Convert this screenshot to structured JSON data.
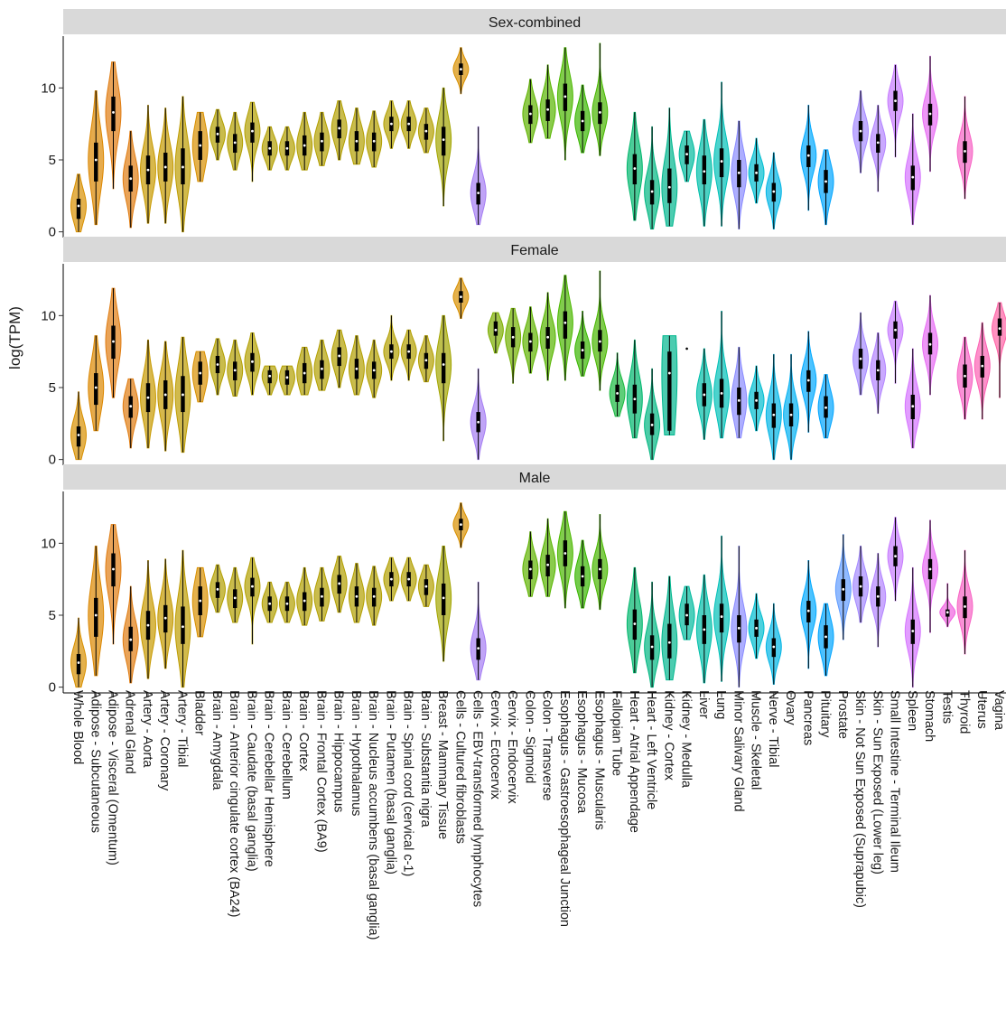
{
  "chart_data": {
    "type": "violin",
    "ylabel": "log(TPM)",
    "xlabel": "",
    "ylim": [
      -0.4,
      13.6
    ],
    "yticks": [
      0,
      5,
      10
    ],
    "grid": false,
    "legend": "none",
    "panels": [
      "Sex-combined",
      "Female",
      "Male"
    ],
    "categories": [
      "Whole Blood",
      "Adipose - Subcutaneous",
      "Adipose - Visceral (Omentum)",
      "Adrenal Gland",
      "Artery - Aorta",
      "Artery - Coronary",
      "Artery - Tibial",
      "Bladder",
      "Brain - Amygdala",
      "Brain - Anterior cingulate cortex (BA24)",
      "Brain - Caudate (basal ganglia)",
      "Brain - Cerebellar Hemisphere",
      "Brain - Cerebellum",
      "Brain - Cortex",
      "Brain - Frontal Cortex (BA9)",
      "Brain - Hippocampus",
      "Brain - Hypothalamus",
      "Brain - Nucleus accumbens (basal ganglia)",
      "Brain - Putamen (basal ganglia)",
      "Brain - Spinal cord (cervical c-1)",
      "Brain - Substantia nigra",
      "Breast - Mammary Tissue",
      "Cells - Cultured fibroblasts",
      "Cells - EBV-transformed lymphocytes",
      "Cervix - Ectocervix",
      "Cervix - Endocervix",
      "Colon - Sigmoid",
      "Colon - Transverse",
      "Esophagus - Gastroesophageal Junction",
      "Esophagus - Mucosa",
      "Esophagus - Muscularis",
      "Fallopian Tube",
      "Heart - Atrial Appendage",
      "Heart - Left Ventricle",
      "Kidney - Cortex",
      "Kidney - Medulla",
      "Liver",
      "Lung",
      "Minor Salivary Gland",
      "Muscle - Skeletal",
      "Nerve - Tibial",
      "Ovary",
      "Pancreas",
      "Pituitary",
      "Prostate",
      "Skin - Not Sun Exposed (Suprapubic)",
      "Skin - Sun Exposed (Lower leg)",
      "Small Intestine - Terminal Ileum",
      "Spleen",
      "Stomach",
      "Testis",
      "Thyroid",
      "Uterus",
      "Vagina"
    ],
    "colors": [
      "#D89000",
      "#DC8700",
      "#E07C11",
      "#E07C11",
      "#C89A00",
      "#C49A00",
      "#BE9C00",
      "#D89000",
      "#B29F00",
      "#B29F00",
      "#B29F00",
      "#B29F00",
      "#B29F00",
      "#B29F00",
      "#B29F00",
      "#B29F00",
      "#B29F00",
      "#B29F00",
      "#B29F00",
      "#B29F00",
      "#B29F00",
      "#A3A500",
      "#D89000",
      "#A57EF3",
      "#7CAE00",
      "#72B000",
      "#5FB300",
      "#58B500",
      "#4CB800",
      "#39B600",
      "#49B700",
      "#1AB940",
      "#00B76D",
      "#00B681",
      "#00B78F",
      "#00BA9E",
      "#00BFAA",
      "#00C0B8",
      "#8A8BFF",
      "#00BDD0",
      "#00B5E5",
      "#00B0F2",
      "#00A9FF",
      "#00A5FF",
      "#619CFF",
      "#A58AFF",
      "#B385FF",
      "#C77CFF",
      "#D573FF",
      "#E76BF3",
      "#F062DF",
      "#F763C4",
      "#FC61B3",
      "#FF62A5"
    ],
    "series": [
      {
        "name": "Sex-combined",
        "values": [
          [
            0,
            4,
            1.8,
            0.9,
            2.3
          ],
          [
            0.5,
            9.8,
            5,
            3.5,
            6.2
          ],
          [
            3,
            11.8,
            8.3,
            7,
            9.4
          ],
          [
            0.3,
            7,
            3.7,
            2.8,
            4.6
          ],
          [
            0.6,
            8.8,
            4.3,
            3.3,
            5.3
          ],
          [
            0.6,
            8.6,
            4.5,
            3.5,
            5.5
          ],
          [
            0,
            9.4,
            4.5,
            3.3,
            5.8
          ],
          [
            3.5,
            8.3,
            6,
            5,
            7
          ],
          [
            5,
            8.5,
            6.8,
            6.2,
            7.3
          ],
          [
            4.3,
            8.3,
            6.2,
            5.5,
            6.8
          ],
          [
            3.5,
            9,
            7,
            6.2,
            7.6
          ],
          [
            4.3,
            7.3,
            5.8,
            5.3,
            6.3
          ],
          [
            4.3,
            7.3,
            5.8,
            5.3,
            6.3
          ],
          [
            4.3,
            8.3,
            6,
            5.3,
            6.7
          ],
          [
            4.6,
            8.3,
            6.3,
            5.6,
            6.9
          ],
          [
            5,
            9.1,
            7.2,
            6.5,
            7.8
          ],
          [
            4.7,
            8.6,
            6.3,
            5.6,
            7
          ],
          [
            4.5,
            8.4,
            6.3,
            5.6,
            6.9
          ],
          [
            5.8,
            9.1,
            7.5,
            7,
            8
          ],
          [
            5.8,
            9.1,
            7.5,
            7,
            8
          ],
          [
            5.5,
            8.6,
            7,
            6.4,
            7.5
          ],
          [
            1.8,
            10,
            6.4,
            5.3,
            7.3
          ],
          [
            9.6,
            12.8,
            11.3,
            10.9,
            11.7
          ],
          [
            0.5,
            7.3,
            2.7,
            1.9,
            3.4
          ],
          [],
          [],
          [
            6.2,
            10.6,
            8.2,
            7.5,
            8.8
          ],
          [
            6.5,
            11.6,
            8.5,
            7.7,
            9.2
          ],
          [
            5,
            12.8,
            9.4,
            8.4,
            10.3
          ],
          [
            5.5,
            10.2,
            7.7,
            7,
            8.4
          ],
          [
            5.3,
            13.1,
            8.3,
            7.5,
            9
          ],
          [],
          [
            0.8,
            8.3,
            4.4,
            3.3,
            5.4
          ],
          [
            0.2,
            7.3,
            2.8,
            1.9,
            3.6
          ],
          [
            0.4,
            8.6,
            3.1,
            2,
            4.4
          ],
          [
            3.5,
            7,
            5.4,
            4.7,
            6
          ],
          [
            0.4,
            7.8,
            4.2,
            3.3,
            5.3
          ],
          [
            0.4,
            10.4,
            4.9,
            3.8,
            5.8
          ],
          [
            0.2,
            7.7,
            4.1,
            3.1,
            5
          ],
          [
            2,
            6.5,
            4.1,
            3.5,
            4.7
          ],
          [
            0.2,
            5.5,
            2.8,
            2.1,
            3.4
          ],
          [],
          [
            1.5,
            8.8,
            5.3,
            4.5,
            6
          ],
          [
            0.5,
            5.7,
            3.5,
            2.7,
            4.3
          ],
          [],
          [
            4.1,
            9.8,
            7,
            6.3,
            7.7
          ],
          [
            2.8,
            8.8,
            6.2,
            5.5,
            6.8
          ],
          [
            5.2,
            11.6,
            9.1,
            8.4,
            9.8
          ],
          [
            0.5,
            8.2,
            3.8,
            2.9,
            4.6
          ],
          [
            4.2,
            12.2,
            8.2,
            7.4,
            8.9
          ],
          [],
          [
            2.3,
            9.4,
            5.6,
            4.8,
            6.3
          ],
          [],
          []
        ]
      },
      {
        "name": "Female",
        "values": [
          [
            0,
            4.7,
            1.7,
            0.9,
            2.3
          ],
          [
            2,
            8.6,
            5,
            3.8,
            6
          ],
          [
            4.3,
            11.9,
            8.2,
            7,
            9.3
          ],
          [
            0.8,
            5.6,
            3.7,
            2.9,
            4.4
          ],
          [
            0.8,
            8.3,
            4.3,
            3.3,
            5.3
          ],
          [
            0.6,
            8.2,
            4.5,
            3.5,
            5.5
          ],
          [
            0.5,
            8.5,
            4.5,
            3.3,
            5.8
          ],
          [
            4,
            7.5,
            6,
            5.2,
            6.8
          ],
          [
            4.5,
            8.4,
            6.6,
            6,
            7.2
          ],
          [
            4.4,
            8.3,
            6.2,
            5.5,
            6.8
          ],
          [
            4.5,
            8.8,
            6.8,
            6.1,
            7.4
          ],
          [
            4.5,
            6.5,
            5.8,
            5.3,
            6.2
          ],
          [
            4.5,
            6.5,
            5.7,
            5.2,
            6.2
          ],
          [
            4.5,
            7.8,
            6,
            5.3,
            6.7
          ],
          [
            4.8,
            8.3,
            6.3,
            5.6,
            6.9
          ],
          [
            5,
            9,
            7.2,
            6.5,
            7.8
          ],
          [
            4.5,
            8.6,
            6.3,
            5.6,
            7
          ],
          [
            4.3,
            8.3,
            6.2,
            5.6,
            6.8
          ],
          [
            5.5,
            10,
            7.5,
            7,
            8
          ],
          [
            5.5,
            9,
            7.5,
            7,
            8
          ],
          [
            5.4,
            8.6,
            6.9,
            6.3,
            7.4
          ],
          [
            1.3,
            10,
            6.6,
            5.3,
            7.4
          ],
          [
            9.8,
            12.6,
            11.3,
            10.9,
            11.7
          ],
          [
            0,
            6.3,
            2.6,
            1.9,
            3.3
          ],
          [
            7.4,
            10.2,
            9,
            8.6,
            9.6
          ],
          [
            5.3,
            10.5,
            8.5,
            7.8,
            9.2
          ],
          [
            6,
            10.6,
            8.2,
            7.5,
            8.8
          ],
          [
            5.5,
            11.6,
            8.5,
            7.7,
            9.2
          ],
          [
            5.5,
            12.8,
            9.5,
            8.4,
            10.3
          ],
          [
            5.8,
            10.3,
            7.6,
            7,
            8.2
          ],
          [
            4.8,
            13.1,
            8.2,
            7.5,
            9
          ],
          [
            3,
            7.4,
            4.6,
            4,
            5.2
          ],
          [
            1.5,
            8.3,
            4.2,
            3.2,
            5.2
          ],
          [
            0,
            6.3,
            2.4,
            1.7,
            3.2
          ],
          [
            1.7,
            8.6,
            6,
            2,
            7.5
          ],
          [
            7.7,
            7.7,
            7.7,
            7.7,
            7.7
          ],
          [
            1.4,
            7.7,
            4.5,
            3.7,
            5.3
          ],
          [
            1.5,
            10.3,
            4.6,
            3.6,
            5.6
          ],
          [
            1.5,
            7.8,
            4.1,
            3.1,
            5
          ],
          [
            2,
            6.5,
            4.1,
            3.5,
            4.7
          ],
          [
            0,
            7.3,
            3.1,
            2.2,
            3.9
          ],
          [
            0,
            7.3,
            3.1,
            2.3,
            3.9
          ],
          [
            1.9,
            8.9,
            5.5,
            4.7,
            6.2
          ],
          [
            1.5,
            5.9,
            3.6,
            2.9,
            4.4
          ],
          [],
          [
            4.5,
            10.2,
            7,
            6.3,
            7.7
          ],
          [
            3.2,
            8.8,
            6.2,
            5.5,
            6.9
          ],
          [
            5.3,
            11,
            9,
            8.4,
            9.6
          ],
          [
            0.8,
            7.7,
            3.7,
            2.8,
            4.5
          ],
          [
            4.5,
            11.4,
            8,
            7.3,
            8.8
          ],
          [],
          [
            2.8,
            8.5,
            5.8,
            5,
            6.6
          ],
          [
            2.8,
            9.5,
            6.5,
            5.7,
            7.2
          ],
          [
            4.3,
            10.9,
            9.1,
            8.6,
            9.8
          ]
        ]
      },
      {
        "name": "Male",
        "values": [
          [
            0,
            4.8,
            1.7,
            0.9,
            2.3
          ],
          [
            0.8,
            9.8,
            5,
            3.5,
            6.2
          ],
          [
            3,
            11.3,
            8.2,
            7,
            9.3
          ],
          [
            0.3,
            7,
            3.3,
            2.5,
            4.2
          ],
          [
            0.6,
            8.8,
            4.3,
            3.3,
            5.3
          ],
          [
            1.3,
            8.9,
            4.8,
            3.8,
            5.7
          ],
          [
            0,
            9.5,
            4.2,
            3,
            5.6
          ],
          [
            3.5,
            8.3,
            6,
            5,
            7
          ],
          [
            5.2,
            8.5,
            6.8,
            6.2,
            7.3
          ],
          [
            4.5,
            8.3,
            6.2,
            5.5,
            6.8
          ],
          [
            3,
            9,
            7,
            6.3,
            7.6
          ],
          [
            4.5,
            7.3,
            5.8,
            5.3,
            6.3
          ],
          [
            4.5,
            7.3,
            5.8,
            5.3,
            6.3
          ],
          [
            4.3,
            8.3,
            6,
            5.3,
            6.6
          ],
          [
            4.6,
            8.3,
            6.3,
            5.6,
            6.9
          ],
          [
            5.2,
            9.1,
            7.2,
            6.5,
            7.8
          ],
          [
            4.5,
            8.6,
            6.3,
            5.6,
            7
          ],
          [
            4.3,
            8.4,
            6.3,
            5.6,
            6.9
          ],
          [
            6,
            9,
            7.5,
            7,
            8
          ],
          [
            6,
            9,
            7.5,
            7,
            8
          ],
          [
            5.6,
            8.5,
            7,
            6.4,
            7.5
          ],
          [
            1.8,
            9.8,
            6.2,
            5,
            7.2
          ],
          [
            9.7,
            12.8,
            11.3,
            10.9,
            11.7
          ],
          [
            0.5,
            7.3,
            2.7,
            1.9,
            3.4
          ],
          [],
          [],
          [
            6.3,
            10.8,
            8.2,
            7.5,
            8.8
          ],
          [
            6.3,
            11.7,
            8.5,
            7.7,
            9.2
          ],
          [
            5.5,
            12.2,
            9.3,
            8.4,
            10.2
          ],
          [
            5.5,
            10.2,
            7.7,
            7,
            8.4
          ],
          [
            5.4,
            12,
            8.2,
            7.5,
            8.9
          ],
          [],
          [
            1,
            8.3,
            4.4,
            3.3,
            5.4
          ],
          [
            0,
            7.3,
            2.8,
            1.9,
            3.6
          ],
          [
            0.5,
            7.7,
            3.1,
            2,
            4.4
          ],
          [
            3.3,
            7,
            5,
            4.3,
            5.8
          ],
          [
            0.3,
            7.8,
            4,
            3,
            5
          ],
          [
            0.4,
            10.5,
            4.9,
            3.8,
            5.8
          ],
          [
            0,
            9.8,
            4.1,
            3.1,
            5
          ],
          [
            2,
            6.5,
            4.1,
            3.5,
            4.7
          ],
          [
            0.2,
            5.8,
            2.8,
            2.1,
            3.4
          ],
          [],
          [
            1.3,
            8.8,
            5.3,
            4.5,
            6
          ],
          [
            0.8,
            5.8,
            3.5,
            2.7,
            4.3
          ],
          [
            3.3,
            10.6,
            6.8,
            6,
            7.5
          ],
          [
            4.5,
            9.8,
            7,
            6.3,
            7.7
          ],
          [
            2.8,
            9.3,
            6.3,
            5.6,
            7
          ],
          [
            6,
            11.8,
            9.1,
            8.4,
            9.8
          ],
          [
            0,
            8.3,
            3.9,
            3,
            4.7
          ],
          [
            3.8,
            11.6,
            8.2,
            7.5,
            8.9
          ],
          [
            4.2,
            7.2,
            5.2,
            4.9,
            5.4
          ],
          [
            2.3,
            9.5,
            5.6,
            4.8,
            6.3
          ],
          [],
          []
        ]
      }
    ]
  }
}
